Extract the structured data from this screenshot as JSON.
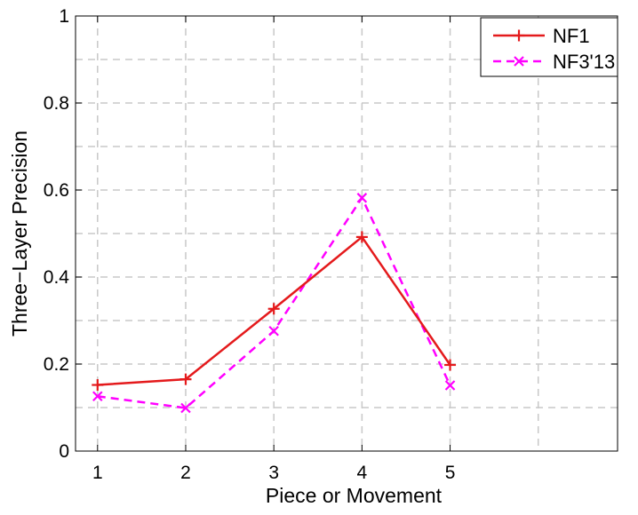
{
  "chart_data": {
    "type": "line",
    "title": "",
    "xlabel": "Piece or Movement",
    "ylabel": "Three−Layer Precision",
    "x": [
      1,
      2,
      3,
      4,
      5
    ],
    "x_ticks": [
      "1",
      "2",
      "3",
      "4",
      "5"
    ],
    "xlim": [
      0.75,
      6.9
    ],
    "ylim": [
      0,
      1
    ],
    "y_ticks": [
      "0",
      "0.2",
      "0.4",
      "0.6",
      "0.8",
      "1"
    ],
    "grid": true,
    "legend_position": "top-right",
    "series": [
      {
        "name": "NF1",
        "values": [
          0.152,
          0.165,
          0.327,
          0.492,
          0.198
        ],
        "color": "#e41a1c",
        "marker": "plus",
        "line_style": "solid"
      },
      {
        "name": "NF3'13",
        "values": [
          0.126,
          0.099,
          0.276,
          0.582,
          0.151
        ],
        "color": "#ff00ff",
        "marker": "x",
        "line_style": "dashed"
      }
    ]
  }
}
